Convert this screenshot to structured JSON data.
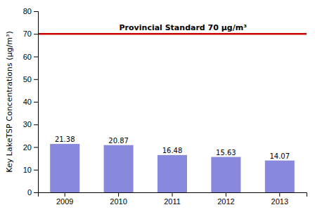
{
  "chart_data": {
    "type": "bar",
    "categories": [
      "2009",
      "2010",
      "2011",
      "2012",
      "2013"
    ],
    "values": [
      21.38,
      20.87,
      16.48,
      15.63,
      14.07
    ],
    "color": "#8888dd",
    "ylabel": "Key LakeTSP Concentrations (μg/m³)",
    "ylim": [
      0,
      80
    ],
    "yticks": [
      0,
      10,
      20,
      30,
      40,
      50,
      60,
      70,
      80
    ],
    "grid": false,
    "data_labels": true,
    "annotations": [
      {
        "y": 70,
        "text": "Provincial Standard 70 μg/m³",
        "color": "#cc0000"
      }
    ]
  }
}
